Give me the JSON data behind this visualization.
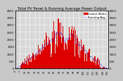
{
  "title": "Total PV Panel & Running Average Power Output",
  "bg_color": "#c8c8c8",
  "plot_bg_color": "#d8d8d8",
  "bar_color": "#dd0000",
  "avg_line_color": "#0000ee",
  "grid_color": "#ffffff",
  "ylim": [
    0,
    4000
  ],
  "yticks_left": [
    0,
    500,
    1000,
    1500,
    2000,
    2500,
    3000,
    3500,
    4000
  ],
  "ytick_labels_left": [
    "0",
    "500",
    "1000",
    "1500",
    "2000",
    "2500",
    "3000",
    "3500",
    "4000"
  ],
  "num_bars": 144,
  "title_fontsize": 3.8,
  "axis_fontsize": 2.8,
  "legend_fontsize": 2.8,
  "legend_labels": [
    "Instant Watts",
    "Running Avg"
  ],
  "xlabel_count": 20
}
